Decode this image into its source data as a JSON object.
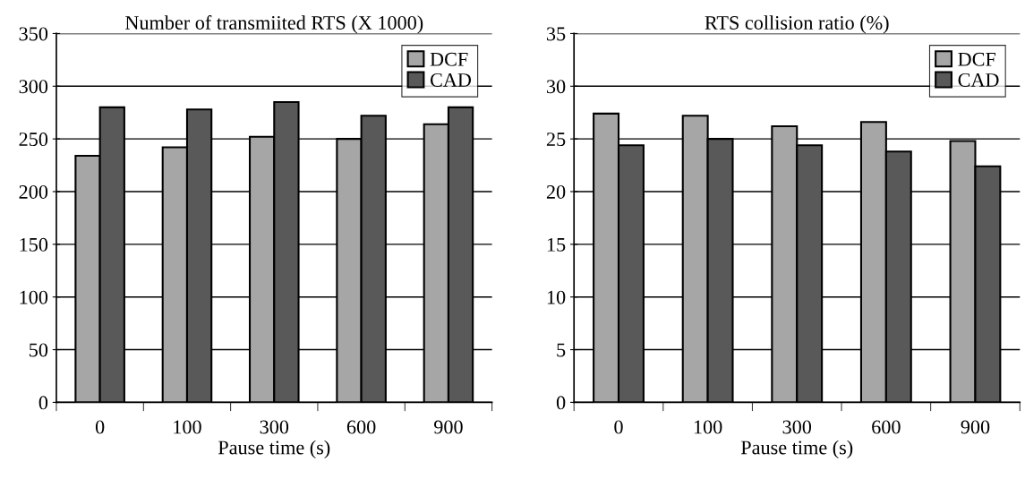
{
  "chart_data": [
    {
      "type": "bar",
      "title": "Number of transmiited RTS (X 1000)",
      "xlabel": "Pause time (s)",
      "categories": [
        "0",
        "100",
        "300",
        "600",
        "900"
      ],
      "series": [
        {
          "name": "DCF",
          "color": "#a6a6a6",
          "values": [
            234,
            242,
            252,
            250,
            264
          ]
        },
        {
          "name": "CAD",
          "color": "#595959",
          "values": [
            280,
            278,
            285,
            272,
            280
          ]
        }
      ],
      "ylim": [
        0,
        350
      ],
      "yticks": [
        0,
        50,
        100,
        150,
        200,
        250,
        300,
        350
      ],
      "grid": "y",
      "legend": "top right"
    },
    {
      "type": "bar",
      "title": "RTS collision ratio (%)",
      "xlabel": "Pause time (s)",
      "categories": [
        "0",
        "100",
        "300",
        "600",
        "900"
      ],
      "series": [
        {
          "name": "DCF",
          "color": "#a6a6a6",
          "values": [
            27.4,
            27.2,
            26.2,
            26.6,
            24.8
          ]
        },
        {
          "name": "CAD",
          "color": "#595959",
          "values": [
            24.4,
            25.0,
            24.4,
            23.8,
            22.4
          ]
        }
      ],
      "ylim": [
        0,
        35
      ],
      "yticks": [
        0,
        5,
        10,
        15,
        20,
        25,
        30,
        35
      ],
      "grid": "y",
      "legend": "top right"
    }
  ]
}
